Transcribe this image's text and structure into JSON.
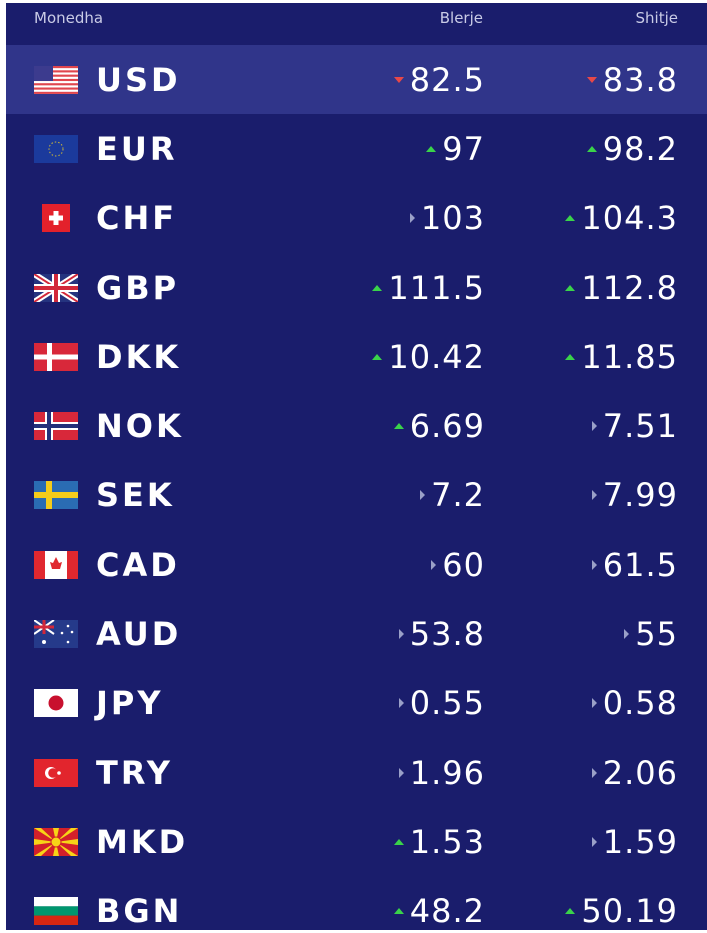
{
  "header": {
    "currency": "Monedha",
    "buy": "Blerje",
    "sell": "Shitje"
  },
  "colors": {
    "background": "#1a1d6c",
    "highlight": "#30358a",
    "up": "#3ad34a",
    "down": "#e84848",
    "same": "#9aa0c8"
  },
  "rows": [
    {
      "code": "USD",
      "flag": "us-flag",
      "buy": "82.5",
      "buy_trend": "down",
      "sell": "83.8",
      "sell_trend": "down",
      "active": true
    },
    {
      "code": "EUR",
      "flag": "eu-flag",
      "buy": "97",
      "buy_trend": "up",
      "sell": "98.2",
      "sell_trend": "up"
    },
    {
      "code": "CHF",
      "flag": "ch-flag",
      "buy": "103",
      "buy_trend": "same",
      "sell": "104.3",
      "sell_trend": "up"
    },
    {
      "code": "GBP",
      "flag": "gb-flag",
      "buy": "111.5",
      "buy_trend": "up",
      "sell": "112.8",
      "sell_trend": "up"
    },
    {
      "code": "DKK",
      "flag": "dk-flag",
      "buy": "10.42",
      "buy_trend": "up",
      "sell": "11.85",
      "sell_trend": "up"
    },
    {
      "code": "NOK",
      "flag": "no-flag",
      "buy": "6.69",
      "buy_trend": "up",
      "sell": "7.51",
      "sell_trend": "same"
    },
    {
      "code": "SEK",
      "flag": "se-flag",
      "buy": "7.2",
      "buy_trend": "same",
      "sell": "7.99",
      "sell_trend": "same"
    },
    {
      "code": "CAD",
      "flag": "ca-flag",
      "buy": "60",
      "buy_trend": "same",
      "sell": "61.5",
      "sell_trend": "same"
    },
    {
      "code": "AUD",
      "flag": "au-flag",
      "buy": "53.8",
      "buy_trend": "same",
      "sell": "55",
      "sell_trend": "same"
    },
    {
      "code": "JPY",
      "flag": "jp-flag",
      "buy": "0.55",
      "buy_trend": "same",
      "sell": "0.58",
      "sell_trend": "same"
    },
    {
      "code": "TRY",
      "flag": "tr-flag",
      "buy": "1.96",
      "buy_trend": "same",
      "sell": "2.06",
      "sell_trend": "same"
    },
    {
      "code": "MKD",
      "flag": "mk-flag",
      "buy": "1.53",
      "buy_trend": "up",
      "sell": "1.59",
      "sell_trend": "same"
    },
    {
      "code": "BGN",
      "flag": "bg-flag",
      "buy": "48.2",
      "buy_trend": "up",
      "sell": "50.19",
      "sell_trend": "up"
    }
  ]
}
